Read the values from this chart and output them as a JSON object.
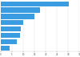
{
  "values": [
    30.5,
    17.5,
    15.0,
    10.0,
    9.0,
    8.5,
    7.0,
    4.0
  ],
  "bar_color": "#3a9de1",
  "background_color": "#ffffff",
  "xlim": [
    0,
    35
  ],
  "bar_height": 0.78,
  "figsize": [
    1.0,
    0.71
  ],
  "dpi": 100
}
